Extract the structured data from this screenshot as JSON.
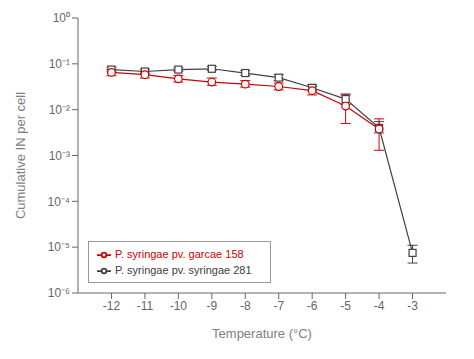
{
  "chart_data": {
    "type": "line",
    "xlabel": "Temperature (°C)",
    "ylabel": "Cumulative IN per cell",
    "log": "y",
    "legend": "lower left",
    "grid": false,
    "xlim": [
      -13,
      -2
    ],
    "xticks": [
      -12,
      -11,
      -10,
      -9,
      -8,
      -7,
      -6,
      -5,
      -4,
      -3
    ],
    "ylim": [
      1e-06,
      1
    ],
    "yticks": [
      {
        "value": 1e-06,
        "label": "10⁻⁶"
      },
      {
        "value": 1e-05,
        "label": "10⁻⁵"
      },
      {
        "value": 0.0001,
        "label": "10⁻⁴"
      },
      {
        "value": 0.001,
        "label": "10⁻³"
      },
      {
        "value": 0.01,
        "label": "10⁻²"
      },
      {
        "value": 0.1,
        "label": "10⁻¹"
      },
      {
        "value": 1,
        "label": "10⁰"
      }
    ],
    "series": [
      {
        "name": "P. syringae pv. syringae 281",
        "color": "#404040",
        "marker": "square",
        "x": [
          -12,
          -11,
          -10,
          -9,
          -8,
          -7,
          -6,
          -5,
          -4,
          -3
        ],
        "values": [
          0.075,
          0.068,
          0.075,
          0.078,
          0.063,
          0.05,
          0.03,
          0.017,
          0.004,
          7.5e-06
        ],
        "yerr_lo": [
          0.008,
          0.007,
          0.006,
          0.006,
          0.007,
          0.007,
          0.004,
          0.004,
          0.0009,
          3e-06
        ],
        "yerr_hi": [
          0.01,
          0.008,
          0.007,
          0.009,
          0.008,
          0.008,
          0.005,
          0.005,
          0.0015,
          3.5e-06
        ]
      },
      {
        "name": "P. syringae pv. garcae 158",
        "color": "#cc0000",
        "marker": "circle",
        "x": [
          -12,
          -11,
          -10,
          -9,
          -8,
          -7,
          -6,
          -5,
          -4
        ],
        "values": [
          0.065,
          0.058,
          0.047,
          0.04,
          0.036,
          0.032,
          0.026,
          0.012,
          0.0038
        ],
        "yerr_lo": [
          0.01,
          0.009,
          0.007,
          0.006,
          0.005,
          0.005,
          0.005,
          0.007,
          0.0025
        ],
        "yerr_hi": [
          0.01,
          0.009,
          0.009,
          0.009,
          0.007,
          0.006,
          0.006,
          0.009,
          0.0025
        ]
      }
    ]
  }
}
